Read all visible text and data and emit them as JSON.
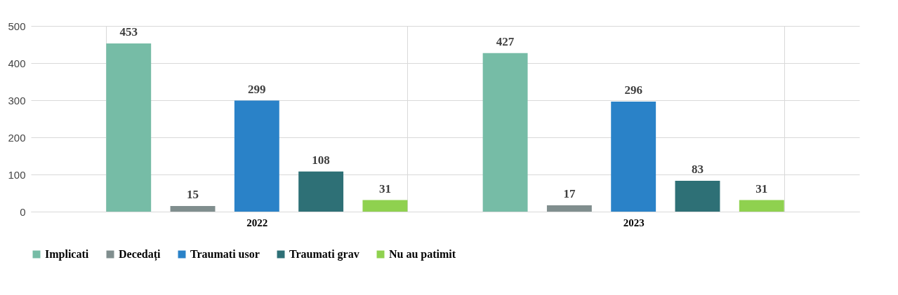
{
  "chart_data": {
    "type": "bar",
    "categories": [
      "2022",
      "2023"
    ],
    "series": [
      {
        "name": "Implicati",
        "color": "#76bca6",
        "values": [
          453,
          427
        ]
      },
      {
        "name": "Decedați",
        "color": "#808e8e",
        "values": [
          15,
          17
        ]
      },
      {
        "name": "Traumati usor",
        "color": "#2a82c8",
        "values": [
          299,
          296
        ]
      },
      {
        "name": "Traumati grav",
        "color": "#2e7076",
        "values": [
          108,
          83
        ]
      },
      {
        "name": "Nu au patimit",
        "color": "#8fd14f",
        "values": [
          31,
          31
        ]
      }
    ],
    "ylim": [
      0,
      500
    ],
    "yticks": [
      0,
      100,
      200,
      300,
      400,
      500
    ],
    "grid": "y",
    "legend": "bottom",
    "data_labels": true
  }
}
